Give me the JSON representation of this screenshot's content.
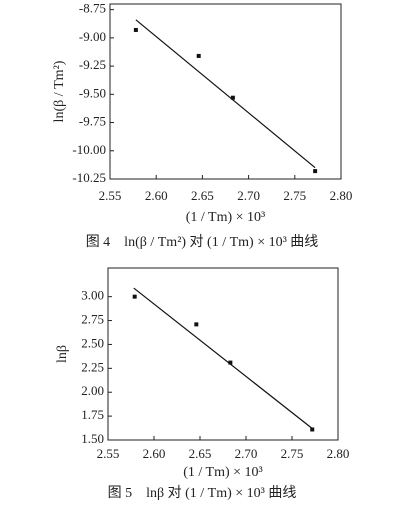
{
  "chart_data": [
    {
      "type": "scatter",
      "y_label": "ln(β / Tm²)",
      "x_label": "(1 / Tm) × 10³",
      "caption": "图 4　ln(β / Tm²) 对 (1 / Tm) × 10³ 曲线",
      "x": [
        2.578,
        2.646,
        2.683,
        2.772
      ],
      "values": [
        -8.93,
        -9.16,
        -9.53,
        -10.18
      ],
      "fit_x": [
        2.578,
        2.772
      ],
      "fit_values": [
        -8.84,
        -10.15
      ],
      "color": "#111111",
      "xlim": [
        2.55,
        2.8
      ],
      "ylim": [
        -10.25,
        -8.7
      ],
      "xticks": [
        2.55,
        {
          "value": 2.6,
          "label": "2.60"
        },
        2.65,
        {
          "value": 2.7,
          "label": "2.70"
        },
        2.75,
        {
          "value": 2.8,
          "label": "2.80"
        }
      ],
      "yticks": [
        -8.75,
        {
          "value": -9,
          "label": "-9.00"
        },
        -9.25,
        {
          "value": -9.5,
          "label": "-9.50"
        },
        -9.75,
        {
          "value": -10,
          "label": "-10.00"
        },
        -10.25
      ]
    },
    {
      "type": "scatter",
      "y_label": "lnβ",
      "x_label": "(1 / Tm) × 10³",
      "caption": "图 5　lnβ 对 (1 / Tm) × 10³ 曲线",
      "x": [
        2.579,
        2.646,
        2.683,
        2.772
      ],
      "values": [
        3.0,
        2.71,
        2.31,
        1.61
      ],
      "fit_x": [
        2.578,
        2.772
      ],
      "fit_values": [
        3.09,
        1.62
      ],
      "color": "#111111",
      "xlim": [
        2.55,
        2.8
      ],
      "ylim": [
        1.5,
        3.3
      ],
      "xticks": [
        2.55,
        {
          "value": 2.6,
          "label": "2.60"
        },
        2.65,
        {
          "value": 2.7,
          "label": "2.70"
        },
        2.75,
        {
          "value": 2.8,
          "label": "2.80"
        }
      ],
      "yticks": [
        {
          "value": 1.5,
          "label": "1.50"
        },
        1.75,
        {
          "value": 2,
          "label": "2.00"
        },
        2.25,
        {
          "value": 2.5,
          "label": "2.50"
        },
        2.75,
        {
          "value": 3,
          "label": "3.00"
        }
      ]
    }
  ]
}
